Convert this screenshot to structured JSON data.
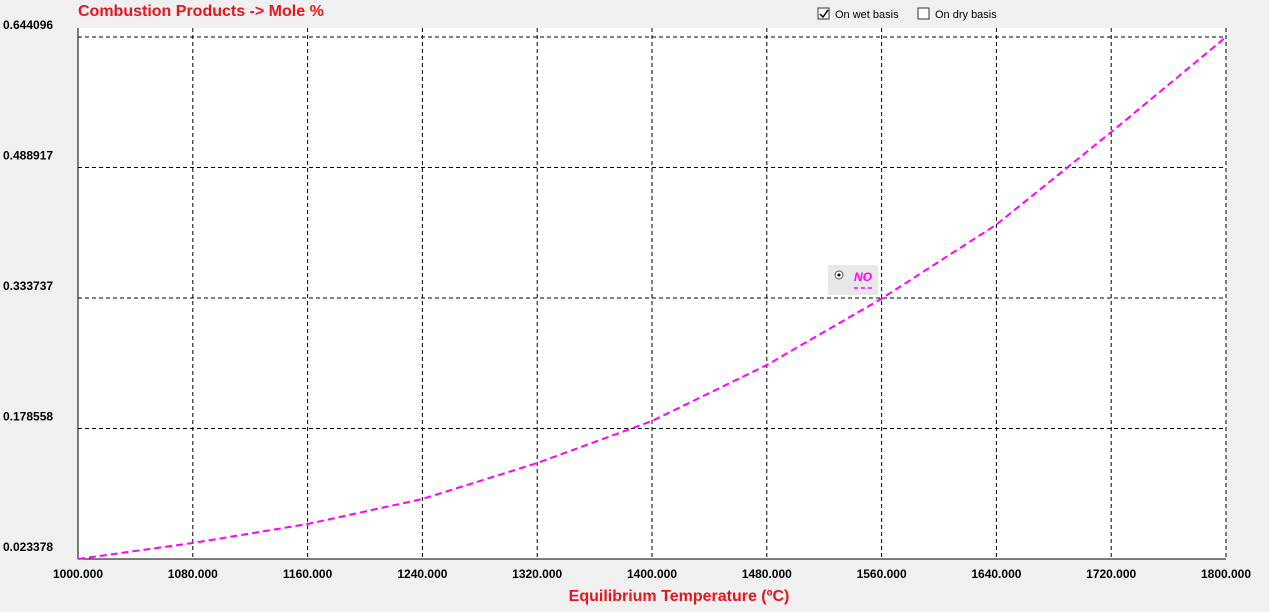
{
  "chart_data": {
    "type": "line",
    "title": "Combustion Products -> Mole %",
    "x_label": "Equilibrium Temperature (ºC)",
    "options": [
      {
        "label": "On wet basis",
        "checked": true
      },
      {
        "label": "On dry basis",
        "checked": false
      }
    ],
    "x": [
      1000,
      1080,
      1160,
      1240,
      1320,
      1400,
      1480,
      1560,
      1640,
      1720,
      1800
    ],
    "series": [
      {
        "name": "NO",
        "color": "#ff00ff",
        "values": [
          0.0234,
          0.0424,
          0.065,
          0.0947,
          0.1375,
          0.1875,
          0.254,
          0.333,
          0.421,
          0.531,
          0.644
        ]
      }
    ],
    "xlim": [
      1000,
      1800
    ],
    "xticks": [
      {
        "value": 1000,
        "label": "1000.000"
      },
      {
        "value": 1080,
        "label": "1080.000"
      },
      {
        "value": 1160,
        "label": "1160.000"
      },
      {
        "value": 1240,
        "label": "1240.000"
      },
      {
        "value": 1320,
        "label": "1320.000"
      },
      {
        "value": 1400,
        "label": "1400.000"
      },
      {
        "value": 1480,
        "label": "1480.000"
      },
      {
        "value": 1560,
        "label": "1560.000"
      },
      {
        "value": 1640,
        "label": "1640.000"
      },
      {
        "value": 1720,
        "label": "1720.000"
      },
      {
        "value": 1800,
        "label": "1800.000"
      }
    ],
    "ylim": [
      0.023378,
      0.644096
    ],
    "yticks": [
      0.023378,
      0.178558,
      0.333737,
      0.488917,
      0.644096
    ],
    "grid": true
  }
}
